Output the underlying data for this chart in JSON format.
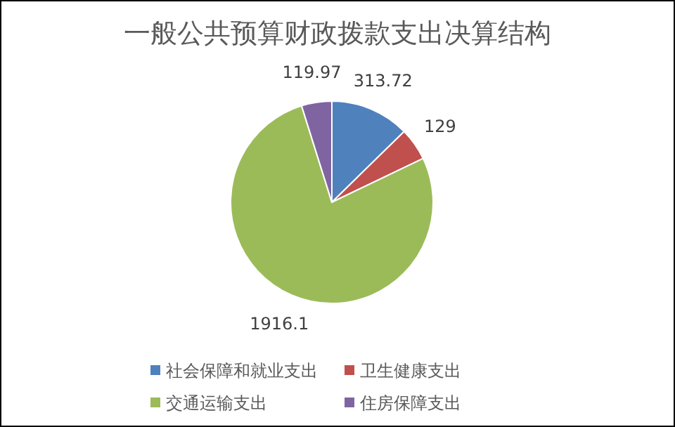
{
  "chart_data": {
    "type": "pie",
    "title": "一般公共预算财政拨款支出决算结构",
    "categories": [
      "社会保障和就业支出",
      "卫生健康支出",
      "交通运输支出",
      "住房保障支出"
    ],
    "values": [
      313.72,
      129,
      1916.1,
      119.97
    ],
    "colors": [
      "#4f81bd",
      "#c0504d",
      "#9bbb59",
      "#8064a2"
    ],
    "data_labels": true,
    "legend": "bottom"
  }
}
